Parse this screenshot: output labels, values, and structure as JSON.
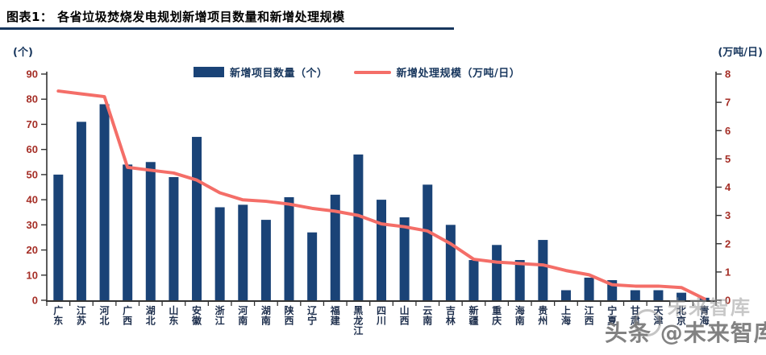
{
  "title": "图表1：  各省垃圾焚烧发电规划新增项目数量和新增处理规模",
  "watermark": {
    "text": "头条 @未来智库",
    "echo_text": "未来智库"
  },
  "colors": {
    "bar": "#1A4377",
    "line": "#F46E68",
    "axis": "#333333",
    "y_tick_label": "#A52E26",
    "category_label": "#1E2F4D",
    "navy_text": "#17365D"
  },
  "chart_data": {
    "type": "bar",
    "subtype": "bar+line dual axis combo",
    "categories": [
      "广东",
      "江苏",
      "河北",
      "广西",
      "湖北",
      "山东",
      "安徽",
      "浙江",
      "河南",
      "湖南",
      "陕西",
      "辽宁",
      "福建",
      "黑龙江",
      "四川",
      "山西",
      "云南",
      "吉林",
      "新疆",
      "重庆",
      "海南",
      "贵州",
      "上海",
      "江西",
      "宁夏",
      "甘肃",
      "天津",
      "北京",
      "青海"
    ],
    "series": [
      {
        "name": "新增项目数量（个）",
        "type": "bar",
        "axis": "left",
        "values": [
          50,
          71,
          78,
          54,
          55,
          49,
          65,
          37,
          38,
          32,
          41,
          27,
          42,
          58,
          40,
          33,
          46,
          30,
          16,
          22,
          16,
          24,
          4,
          9,
          8,
          4,
          4,
          3,
          1
        ]
      },
      {
        "name": "新增处理规模（万吨/日）",
        "type": "line",
        "axis": "right",
        "values": [
          7.4,
          7.3,
          7.2,
          4.7,
          4.6,
          4.5,
          4.25,
          3.8,
          3.55,
          3.5,
          3.4,
          3.25,
          3.15,
          3.0,
          2.7,
          2.6,
          2.45,
          2.0,
          1.45,
          1.35,
          1.3,
          1.25,
          1.05,
          0.9,
          0.55,
          0.5,
          0.5,
          0.45,
          0.05
        ]
      }
    ],
    "left_axis_unit": "(个)",
    "right_axis_unit": "(万吨/日)",
    "left_ylim": [
      0,
      90
    ],
    "left_tick_step": 10,
    "right_ylim": [
      0,
      8
    ],
    "right_tick_step": 1,
    "grid": false,
    "legend_position": "top-center"
  }
}
